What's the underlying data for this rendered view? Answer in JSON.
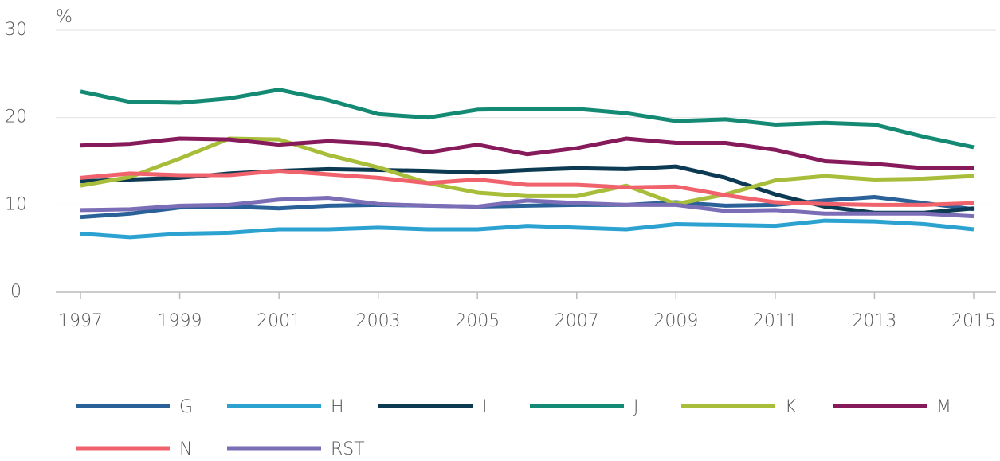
{
  "chart_data": {
    "type": "line",
    "y_label": "%",
    "x": [
      1997,
      1998,
      1999,
      2000,
      2001,
      2002,
      2003,
      2004,
      2005,
      2006,
      2007,
      2008,
      2009,
      2010,
      2011,
      2012,
      2013,
      2014,
      2015
    ],
    "xlim": [
      1997,
      2015
    ],
    "xticks": [
      1997,
      1999,
      2001,
      2003,
      2005,
      2007,
      2009,
      2011,
      2013,
      2015
    ],
    "ylim": [
      0,
      30
    ],
    "yticks": [
      0,
      10,
      20,
      30
    ],
    "grid": true,
    "legend": "bottom",
    "series": [
      {
        "name": "G",
        "color": "#2a6198",
        "values": [
          8.6,
          9.0,
          9.7,
          9.8,
          9.6,
          9.9,
          10.0,
          9.9,
          9.8,
          9.9,
          10.0,
          10.0,
          10.3,
          9.9,
          10.0,
          10.5,
          10.9,
          10.2,
          9.5
        ]
      },
      {
        "name": "H",
        "color": "#2ca2d1",
        "values": [
          6.7,
          6.3,
          6.7,
          6.8,
          7.2,
          7.2,
          7.4,
          7.2,
          7.2,
          7.6,
          7.4,
          7.2,
          7.8,
          7.7,
          7.6,
          8.2,
          8.1,
          7.8,
          7.2
        ]
      },
      {
        "name": "I",
        "color": "#0b3a52",
        "values": [
          12.7,
          12.9,
          13.1,
          13.6,
          13.9,
          14.1,
          14.0,
          13.9,
          13.7,
          14.0,
          14.2,
          14.1,
          14.4,
          13.1,
          11.2,
          9.8,
          9.1,
          9.1,
          9.6
        ]
      },
      {
        "name": "J",
        "color": "#148a75",
        "values": [
          23.0,
          21.8,
          21.7,
          22.2,
          23.2,
          22.0,
          20.4,
          20.0,
          20.9,
          21.0,
          21.0,
          20.5,
          19.6,
          19.8,
          19.2,
          19.4,
          19.2,
          17.8,
          16.6
        ]
      },
      {
        "name": "K",
        "color": "#a8bd3a",
        "values": [
          12.2,
          13.2,
          15.3,
          17.6,
          17.5,
          15.7,
          14.3,
          12.5,
          11.4,
          11.0,
          11.0,
          12.2,
          10.1,
          11.2,
          12.8,
          13.3,
          12.9,
          13.0,
          13.3
        ]
      },
      {
        "name": "M",
        "color": "#871a5b",
        "values": [
          16.8,
          17.0,
          17.6,
          17.5,
          16.9,
          17.3,
          17.0,
          16.0,
          16.9,
          15.8,
          16.5,
          17.6,
          17.1,
          17.1,
          16.3,
          15.0,
          14.7,
          14.2,
          14.2
        ]
      },
      {
        "name": "N",
        "color": "#f0626c",
        "values": [
          13.1,
          13.6,
          13.4,
          13.4,
          13.9,
          13.5,
          13.1,
          12.5,
          12.9,
          12.3,
          12.3,
          12.0,
          12.1,
          11.1,
          10.3,
          10.1,
          10.0,
          10.0,
          10.2
        ]
      },
      {
        "name": "RST",
        "color": "#7b6db6",
        "values": [
          9.4,
          9.5,
          9.9,
          10.0,
          10.6,
          10.8,
          10.1,
          9.9,
          9.8,
          10.5,
          10.2,
          10.0,
          10.0,
          9.3,
          9.4,
          9.0,
          9.0,
          9.0,
          8.7
        ]
      }
    ]
  }
}
